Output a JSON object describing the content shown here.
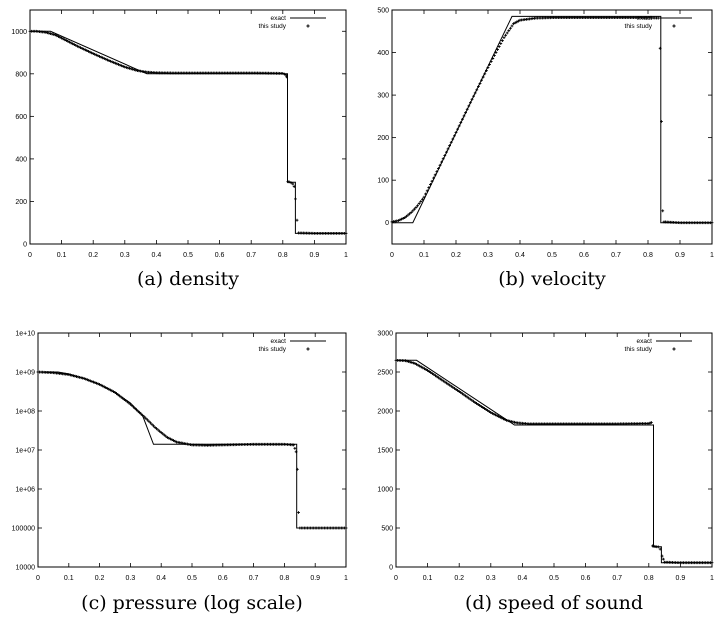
{
  "chart_data": [
    {
      "type": "line",
      "caption": "(a) density",
      "legend_position": "top-right",
      "series": [
        {
          "name": "exact",
          "style": "line",
          "x": [
            0,
            0.065,
            0.37,
            0.815,
            0.815,
            0.84,
            0.84,
            1
          ],
          "y": [
            1000,
            1000,
            800,
            800,
            290,
            290,
            50,
            50
          ]
        },
        {
          "name": "this study",
          "style": "points",
          "sampled_from": "profile",
          "x": [
            0,
            0.02,
            0.05,
            0.08,
            0.1,
            0.15,
            0.2,
            0.25,
            0.3,
            0.34,
            0.37,
            0.4,
            0.45,
            0.5,
            0.6,
            0.7,
            0.8,
            0.81,
            0.812,
            0.816,
            0.82,
            0.826,
            0.832,
            0.836,
            0.84,
            0.845,
            0.85,
            0.9,
            1
          ],
          "y": [
            1000,
            1000,
            995,
            983,
            968,
            930,
            895,
            862,
            832,
            815,
            808,
            805,
            804,
            804,
            804,
            804,
            802,
            795,
            786,
            293,
            292,
            288,
            282,
            270,
            212,
            112,
            52,
            50,
            50
          ]
        }
      ],
      "xlim": [
        0,
        1
      ],
      "ylim": [
        0,
        1100
      ],
      "xticks": [
        "0",
        "0.1",
        "0.2",
        "0.3",
        "0.4",
        "0.5",
        "0.6",
        "0.7",
        "0.8",
        "0.9",
        "1"
      ],
      "yticks": [
        "0",
        "200",
        "400",
        "600",
        "800",
        "1000"
      ],
      "ytick_values": [
        0,
        200,
        400,
        600,
        800,
        1000
      ]
    },
    {
      "type": "line",
      "caption": "(b) velocity",
      "legend_position": "top-right",
      "series": [
        {
          "name": "exact",
          "style": "line",
          "x": [
            0,
            0.065,
            0.375,
            0.84,
            0.84,
            1
          ],
          "y": [
            0,
            0,
            485,
            485,
            0,
            0
          ]
        },
        {
          "name": "this study",
          "style": "points",
          "sampled_from": "profile",
          "x": [
            0,
            0.02,
            0.04,
            0.06,
            0.08,
            0.1,
            0.15,
            0.2,
            0.25,
            0.3,
            0.35,
            0.38,
            0.4,
            0.45,
            0.5,
            0.6,
            0.7,
            0.8,
            0.832,
            0.838,
            0.842,
            0.846,
            0.85,
            0.9,
            1
          ],
          "y": [
            2,
            5,
            12,
            24,
            40,
            60,
            135,
            212,
            290,
            365,
            435,
            468,
            476,
            481,
            482,
            482,
            482,
            482,
            481,
            410,
            238,
            28,
            2,
            0,
            0
          ]
        }
      ],
      "xlim": [
        0,
        1
      ],
      "ylim": [
        -50,
        500
      ],
      "xticks": [
        "0",
        "0.1",
        "0.2",
        "0.3",
        "0.4",
        "0.5",
        "0.6",
        "0.7",
        "0.8",
        "0.9",
        "1"
      ],
      "yticks": [
        "0",
        "100",
        "200",
        "300",
        "400",
        "500"
      ],
      "ytick_values": [
        0,
        100,
        200,
        300,
        400,
        500
      ]
    },
    {
      "type": "line",
      "caption": "(c) pressure (log scale)",
      "legend_position": "top-right",
      "log_y": true,
      "series": [
        {
          "name": "exact",
          "style": "line",
          "x": [
            0,
            0.065,
            0.1,
            0.15,
            0.2,
            0.25,
            0.3,
            0.34,
            0.375,
            0.375,
            0.84,
            0.84,
            1
          ],
          "y": [
            1000000000,
            1000000000,
            890000000,
            680000000,
            480000000,
            300000000,
            160000000,
            75000000,
            14000000,
            14000000,
            14000000,
            100000,
            100000
          ]
        },
        {
          "name": "this study",
          "style": "points",
          "sampled_from": "profile",
          "x": [
            0,
            0.05,
            0.1,
            0.15,
            0.2,
            0.25,
            0.3,
            0.35,
            0.38,
            0.4,
            0.42,
            0.45,
            0.5,
            0.55,
            0.6,
            0.7,
            0.8,
            0.83,
            0.838,
            0.842,
            0.846,
            0.85,
            0.9,
            1
          ],
          "y": [
            1000000000,
            960000000,
            860000000,
            680000000,
            480000000,
            300000000,
            150000000,
            65000000,
            38000000,
            28000000,
            21000000,
            16000000,
            13500000,
            13200000,
            13500000,
            14000000,
            14000000,
            13500000,
            9000000,
            3200000,
            250000,
            100000,
            100000,
            100000
          ]
        }
      ],
      "xlim": [
        0,
        1
      ],
      "ylim": [
        10000,
        10000000000
      ],
      "xticks": [
        "0",
        "0.1",
        "0.2",
        "0.3",
        "0.4",
        "0.5",
        "0.6",
        "0.7",
        "0.8",
        "0.9",
        "1"
      ],
      "yticks": [
        "10000",
        "100000",
        "1e+06",
        "1e+07",
        "1e+08",
        "1e+09",
        "1e+10"
      ],
      "ytick_values": [
        10000,
        100000,
        1000000,
        10000000,
        100000000,
        1000000000,
        10000000000
      ]
    },
    {
      "type": "line",
      "caption": "(d) speed of sound",
      "legend_position": "top-right",
      "series": [
        {
          "name": "exact",
          "style": "line",
          "x": [
            0,
            0.065,
            0.375,
            0.815,
            0.815,
            0.84,
            0.84,
            1
          ],
          "y": [
            2650,
            2650,
            1820,
            1820,
            260,
            260,
            55,
            55
          ]
        },
        {
          "name": "this study",
          "style": "points",
          "sampled_from": "profile",
          "x": [
            0,
            0.03,
            0.06,
            0.1,
            0.15,
            0.2,
            0.25,
            0.3,
            0.35,
            0.38,
            0.42,
            0.5,
            0.6,
            0.7,
            0.8,
            0.808,
            0.812,
            0.82,
            0.83,
            0.836,
            0.842,
            0.85,
            0.9,
            1
          ],
          "y": [
            2650,
            2645,
            2610,
            2520,
            2385,
            2250,
            2110,
            1980,
            1880,
            1850,
            1835,
            1835,
            1835,
            1835,
            1840,
            1852,
            270,
            262,
            258,
            230,
            140,
            62,
            55,
            55
          ]
        }
      ],
      "xlim": [
        0,
        1
      ],
      "ylim": [
        0,
        3000
      ],
      "xticks": [
        "0",
        "0.1",
        "0.2",
        "0.3",
        "0.4",
        "0.5",
        "0.6",
        "0.7",
        "0.8",
        "0.9",
        "1"
      ],
      "yticks": [
        "0",
        "500",
        "1000",
        "1500",
        "2000",
        "2500",
        "3000"
      ],
      "ytick_values": [
        0,
        500,
        1000,
        1500,
        2000,
        2500,
        3000
      ]
    }
  ]
}
